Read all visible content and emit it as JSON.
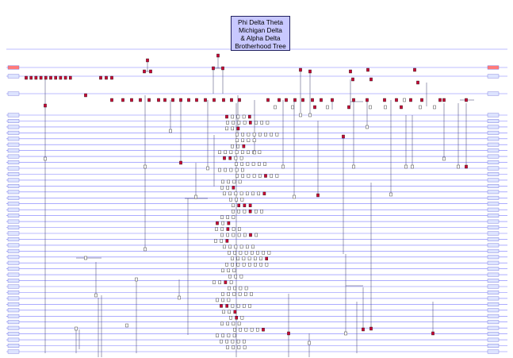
{
  "title": {
    "lines": [
      "Phi Delta Theta",
      "Michigan Delta",
      "& Alpha Delta",
      "Brotherhood Tree"
    ]
  },
  "colors": {
    "rule": "#7b7bff",
    "line": "#3a3a6a",
    "node_fill": "#cc0033",
    "node_stroke": "#1a1a1a",
    "year_box": "#dde4ff",
    "year_box_border": "#6a6ad8",
    "top_box": "#ff7a7a",
    "title_box": "#c8c8ff"
  },
  "legend": {
    "founders_label_left": "",
    "founders_label_right": ""
  }
}
